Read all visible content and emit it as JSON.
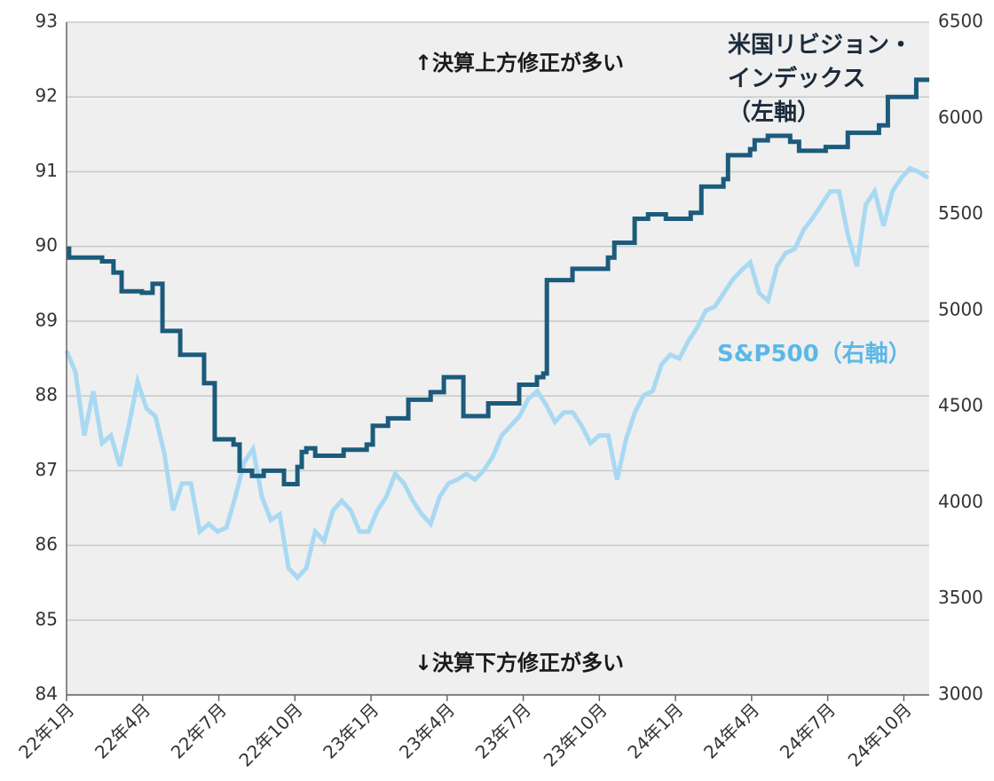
{
  "chart_data": {
    "type": "line",
    "annotations": [
      "↑決算上方修正が多い",
      "↓決算下方修正が多い"
    ],
    "xlim": [
      0,
      34
    ],
    "xticks": [
      {
        "value": 0,
        "label": "22年1月"
      },
      {
        "value": 3,
        "label": "22年4月"
      },
      {
        "value": 6,
        "label": "22年7月"
      },
      {
        "value": 9,
        "label": "22年10月"
      },
      {
        "value": 12,
        "label": "23年1月"
      },
      {
        "value": 15,
        "label": "23年4月"
      },
      {
        "value": 18,
        "label": "23年7月"
      },
      {
        "value": 21,
        "label": "23年10月"
      },
      {
        "value": 24,
        "label": "24年1月"
      },
      {
        "value": 27,
        "label": "24年4月"
      },
      {
        "value": 30,
        "label": "24年7月"
      },
      {
        "value": 33,
        "label": "24年10月"
      }
    ],
    "ylim": [
      84,
      93
    ],
    "yticks": [
      84,
      85,
      86,
      87,
      88,
      89,
      90,
      91,
      92,
      93
    ],
    "y2lim": [
      3000,
      6500
    ],
    "y2ticks": [
      3000,
      3500,
      4000,
      4500,
      5000,
      5500,
      6000,
      6500
    ],
    "grid": true,
    "series": [
      {
        "name": "S&P500（右軸）",
        "color": "#a9d9f2",
        "axis": "y2",
        "x": [
          0,
          0.35,
          0.7,
          1.05,
          1.4,
          1.75,
          2.1,
          2.45,
          2.8,
          3.15,
          3.5,
          3.85,
          4.2,
          4.55,
          4.9,
          5.25,
          5.6,
          5.95,
          6.3,
          6.65,
          7.0,
          7.35,
          7.7,
          8.05,
          8.4,
          8.75,
          9.1,
          9.45,
          9.8,
          10.15,
          10.5,
          10.85,
          11.2,
          11.55,
          11.9,
          12.25,
          12.6,
          12.95,
          13.3,
          13.65,
          14.0,
          14.35,
          14.7,
          15.05,
          15.4,
          15.75,
          16.1,
          16.45,
          16.8,
          17.15,
          17.5,
          17.85,
          18.2,
          18.55,
          18.9,
          19.25,
          19.6,
          19.95,
          20.3,
          20.65,
          21.0,
          21.35,
          21.7,
          22.05,
          22.4,
          22.75,
          23.1,
          23.45,
          23.8,
          24.15,
          24.5,
          24.85,
          25.2,
          25.55,
          25.9,
          26.25,
          26.6,
          26.95,
          27.3,
          27.65,
          28.0,
          28.35,
          28.7,
          29.05,
          29.4,
          29.75,
          30.1,
          30.45,
          30.8,
          31.15,
          31.5,
          31.85,
          32.2,
          32.55,
          32.9,
          33.25,
          33.6,
          33.95
        ],
        "values": [
          4790,
          4680,
          4350,
          4580,
          4310,
          4350,
          4190,
          4400,
          4630,
          4490,
          4450,
          4260,
          3960,
          4100,
          4100,
          3850,
          3890,
          3850,
          3870,
          4030,
          4210,
          4280,
          4030,
          3910,
          3940,
          3660,
          3610,
          3660,
          3850,
          3800,
          3960,
          4010,
          3960,
          3850,
          3850,
          3960,
          4030,
          4150,
          4100,
          4010,
          3940,
          3890,
          4030,
          4100,
          4120,
          4150,
          4120,
          4170,
          4240,
          4350,
          4400,
          4450,
          4540,
          4580,
          4510,
          4420,
          4470,
          4470,
          4400,
          4310,
          4350,
          4350,
          4120,
          4330,
          4470,
          4560,
          4580,
          4720,
          4770,
          4750,
          4840,
          4910,
          5000,
          5020,
          5090,
          5160,
          5210,
          5250,
          5090,
          5050,
          5230,
          5300,
          5320,
          5420,
          5480,
          5550,
          5620,
          5620,
          5390,
          5230,
          5550,
          5620,
          5440,
          5620,
          5690,
          5740,
          5720,
          5690
        ]
      },
      {
        "name": "米国リビジョン・\nインデックス\n（左軸）",
        "color": "#1b5b7b",
        "axis": "y",
        "step": "post",
        "x": [
          0,
          0.1,
          1.4,
          1.85,
          2.17,
          2.97,
          3.39,
          3.78,
          4.48,
          5.42,
          5.84,
          6.58,
          6.82,
          7.31,
          7.77,
          8.57,
          9.1,
          9.27,
          9.45,
          9.8,
          10.92,
          11.83,
          12.07,
          12.67,
          13.47,
          14.35,
          14.87,
          15.64,
          16.62,
          17.84,
          18.54,
          18.79,
          18.93,
          19.94,
          21.34,
          21.59,
          22.39,
          22.92,
          23.62,
          24.6,
          25.02,
          25.89,
          26.07,
          26.94,
          27.12,
          27.64,
          28.52,
          28.87,
          29.92,
          30.79,
          32.02,
          32.37,
          33.49,
          34
        ],
        "values": [
          89.97,
          89.85,
          89.8,
          89.65,
          89.4,
          89.38,
          89.5,
          88.87,
          88.55,
          88.17,
          87.42,
          87.35,
          87.0,
          86.93,
          87.0,
          86.82,
          87.05,
          87.25,
          87.3,
          87.2,
          87.28,
          87.35,
          87.6,
          87.7,
          87.95,
          88.05,
          88.25,
          87.73,
          87.9,
          88.15,
          88.25,
          88.3,
          89.55,
          89.7,
          89.85,
          90.05,
          90.37,
          90.43,
          90.37,
          90.45,
          90.8,
          90.9,
          91.22,
          91.3,
          91.42,
          91.48,
          91.4,
          91.28,
          91.33,
          91.52,
          91.62,
          92.0,
          92.23,
          92.23
        ]
      }
    ]
  }
}
